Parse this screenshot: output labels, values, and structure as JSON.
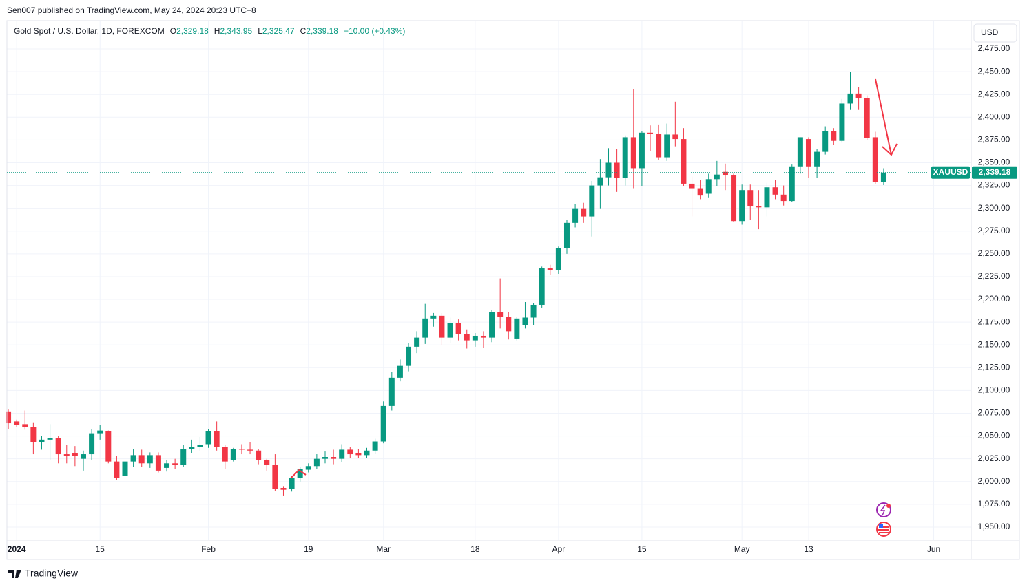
{
  "chart_data": {
    "type": "candlestick",
    "published": "Sen007 published on TradingView.com, May 24, 2024 20:23 UTC+8",
    "title": "Gold Spot / U.S. Dollar, 1D, FOREXCOM",
    "ohlc_header": [
      {
        "label": "O",
        "value": "2,329.18"
      },
      {
        "label": "H",
        "value": "2,343.95"
      },
      {
        "label": "L",
        "value": "2,325.47"
      },
      {
        "label": "C",
        "value": "2,339.18"
      }
    ],
    "change": "+10.00 (+0.43%)",
    "currency": "USD",
    "symbol_tag": "XAUUSD",
    "last_price": {
      "value": 2339.18,
      "label": "2,339.18"
    },
    "brand": "TradingView",
    "up_color": "#089981",
    "down_color": "#f23645",
    "open": [
      2077,
      2066,
      2063,
      2060,
      2043,
      2046,
      2048,
      2030,
      2031,
      2025,
      2030,
      2053,
      2055,
      2022,
      2006,
      2022,
      2029,
      2020,
      2029,
      2015,
      2020,
      2018,
      2036,
      2038,
      2041,
      2055,
      2038,
      2024,
      2036,
      2035,
      2034,
      2024,
      2018,
      1993,
      1992,
      2004,
      2013,
      2017,
      2025,
      2027,
      2025,
      2035,
      2031,
      2029,
      2034,
      2044,
      2083,
      2114,
      2127,
      2148,
      2158,
      2179,
      2182,
      2158,
      2174,
      2162,
      2155,
      2160,
      2158,
      2186,
      2181,
      2157,
      2172,
      2180,
      2194,
      2234,
      2232,
      2256,
      2284,
      2300,
      2291,
      2325,
      2334,
      2350,
      2333,
      2378,
      2344,
      2383,
      2382,
      2356,
      2381,
      2376,
      2327,
      2322,
      2316,
      2332,
      2340,
      2336,
      2286,
      2320,
      2302,
      2301,
      2323,
      2315,
      2308,
      2346,
      2376,
      2346,
      2362,
      2385,
      2374,
      2415,
      2426,
      2421,
      2378,
      2329.18
    ],
    "high": [
      2079,
      2068,
      2078,
      2065,
      2050,
      2063,
      2050,
      2040,
      2039,
      2034,
      2058,
      2062,
      2056,
      2028,
      2025,
      2036,
      2035,
      2032,
      2032,
      2024,
      2025,
      2040,
      2046,
      2049,
      2058,
      2066,
      2040,
      2037,
      2041,
      2043,
      2036,
      2025,
      2030,
      1995,
      2006,
      2016,
      2020,
      2030,
      2033,
      2035,
      2041,
      2038,
      2036,
      2037,
      2047,
      2088,
      2120,
      2134,
      2152,
      2165,
      2195,
      2185,
      2185,
      2180,
      2178,
      2167,
      2163,
      2165,
      2188,
      2223,
      2186,
      2181,
      2197,
      2196,
      2236,
      2238,
      2258,
      2287,
      2305,
      2306,
      2330,
      2354,
      2366,
      2365,
      2380,
      2431,
      2385,
      2391,
      2392,
      2393,
      2417,
      2388,
      2335,
      2331,
      2338,
      2352,
      2349,
      2338,
      2326,
      2326,
      2320,
      2328,
      2331,
      2325,
      2348,
      2378,
      2378,
      2365,
      2390,
      2388,
      2420,
      2450,
      2433,
      2424,
      2384,
      2343.95
    ],
    "low": [
      2058,
      2060,
      2057,
      2030,
      2035,
      2024,
      2020,
      2020,
      2017,
      2012,
      2024,
      2046,
      2020,
      2002,
      2004,
      2016,
      2016,
      2015,
      2010,
      2011,
      2014,
      2016,
      2031,
      2034,
      2037,
      2034,
      2014,
      2022,
      2030,
      2030,
      2019,
      2012,
      1990,
      1984,
      1989,
      2000,
      2010,
      2014,
      2020,
      2019,
      2021,
      2026,
      2026,
      2026,
      2030,
      2042,
      2078,
      2110,
      2121,
      2141,
      2151,
      2170,
      2150,
      2152,
      2155,
      2146,
      2148,
      2147,
      2153,
      2168,
      2156,
      2155,
      2168,
      2172,
      2191,
      2227,
      2228,
      2250,
      2279,
      2284,
      2269,
      2300,
      2325,
      2318,
      2325,
      2322,
      2324,
      2363,
      2353,
      2352,
      2368,
      2324,
      2291,
      2310,
      2312,
      2324,
      2320,
      2285,
      2282,
      2287,
      2277,
      2291,
      2310,
      2303,
      2307,
      2338,
      2333,
      2333,
      2359,
      2370,
      2372,
      2408,
      2408,
      2375,
      2327,
      2325.47
    ],
    "close": [
      2064,
      2062,
      2060,
      2043,
      2046,
      2048,
      2030,
      2028,
      2028,
      2030,
      2053,
      2056,
      2022,
      2004,
      2022,
      2029,
      2020,
      2029,
      2012,
      2020,
      2018,
      2036,
      2038,
      2040,
      2055,
      2038,
      2022,
      2036,
      2035,
      2034,
      2024,
      2018,
      1992,
      1991,
      2004,
      2014,
      2017,
      2025,
      2027,
      2025,
      2035,
      2030,
      2029,
      2034,
      2044,
      2083,
      2114,
      2127,
      2148,
      2158,
      2179,
      2182,
      2158,
      2174,
      2162,
      2155,
      2160,
      2158,
      2186,
      2181,
      2165,
      2179,
      2180,
      2194,
      2234,
      2232,
      2256,
      2284,
      2300,
      2291,
      2325,
      2334,
      2350,
      2333,
      2378,
      2344,
      2383,
      2382,
      2356,
      2381,
      2376,
      2327,
      2322,
      2314,
      2332,
      2337,
      2336,
      2286,
      2320,
      2302,
      2301,
      2323,
      2315,
      2308,
      2346,
      2378,
      2346,
      2362,
      2385,
      2374,
      2415,
      2426,
      2421,
      2377,
      2329,
      2339.18
    ],
    "xlim": [
      -0.17,
      115.5
    ],
    "xticks": [
      {
        "value": 1,
        "label": "2024"
      },
      {
        "value": 11,
        "label": "15"
      },
      {
        "value": 24,
        "label": "Feb"
      },
      {
        "value": 36,
        "label": "19"
      },
      {
        "value": 45,
        "label": "Mar"
      },
      {
        "value": 56,
        "label": "18"
      },
      {
        "value": 66,
        "label": "Apr"
      },
      {
        "value": 76,
        "label": "15"
      },
      {
        "value": 88,
        "label": "May"
      },
      {
        "value": 96,
        "label": "13"
      },
      {
        "value": 111,
        "label": "Jun"
      }
    ],
    "ylim": [
      1935.6,
      2506
    ],
    "yticks": [
      {
        "value": 1950,
        "label": "1,950.00"
      },
      {
        "value": 1975,
        "label": "1,975.00"
      },
      {
        "value": 2000,
        "label": "2,000.00"
      },
      {
        "value": 2025,
        "label": "2,025.00"
      },
      {
        "value": 2050,
        "label": "2,050.00"
      },
      {
        "value": 2075,
        "label": "2,075.00"
      },
      {
        "value": 2100,
        "label": "2,100.00"
      },
      {
        "value": 2125,
        "label": "2,125.00"
      },
      {
        "value": 2150,
        "label": "2,150.00"
      },
      {
        "value": 2175,
        "label": "2,175.00"
      },
      {
        "value": 2200,
        "label": "2,200.00"
      },
      {
        "value": 2225,
        "label": "2,225.00"
      },
      {
        "value": 2250,
        "label": "2,250.00"
      },
      {
        "value": 2275,
        "label": "2,275.00"
      },
      {
        "value": 2300,
        "label": "2,300.00"
      },
      {
        "value": 2325,
        "label": "2,325.00"
      },
      {
        "value": 2350,
        "label": "2,350.00"
      },
      {
        "value": 2375,
        "label": "2,375.00"
      },
      {
        "value": 2400,
        "label": "2,400.00"
      },
      {
        "value": 2425,
        "label": "2,425.00"
      },
      {
        "value": 2450,
        "label": "2,450.00"
      },
      {
        "value": 2475,
        "label": "2,475.00"
      }
    ],
    "grid": true
  }
}
